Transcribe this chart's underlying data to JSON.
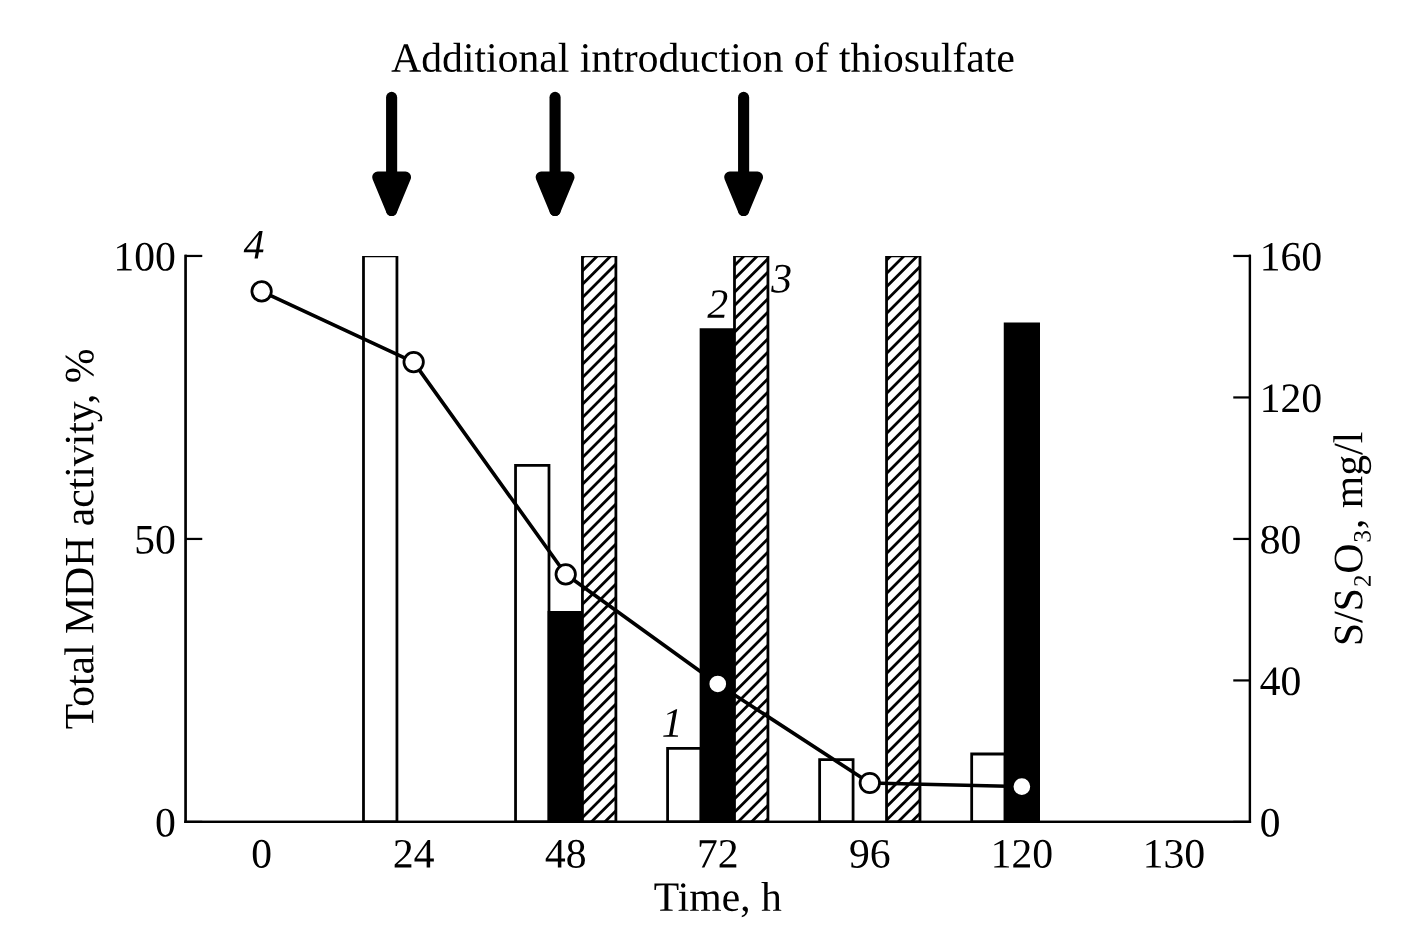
{
  "chart_data": {
    "type": "bar",
    "title": "Additional introduction of thiosulfate",
    "xlabel": "Time, h",
    "ylabel": "Total MDH activity, %",
    "y2label": "S/S₂O₃, mg/l",
    "categories": [
      "0",
      "24",
      "48",
      "72",
      "96",
      "120",
      "130"
    ],
    "ylim": [
      0,
      100
    ],
    "yticks": [
      0,
      50,
      100
    ],
    "y2lim": [
      0,
      160
    ],
    "y2ticks": [
      0,
      40,
      80,
      120,
      160
    ],
    "grid": false,
    "legend": false,
    "series": [
      {
        "name": "1",
        "type": "bar",
        "color": "#ffffff",
        "values": [
          null,
          100,
          63,
          13,
          11,
          12,
          null
        ]
      },
      {
        "name": "2",
        "type": "bar",
        "color": "#000000",
        "values": [
          null,
          null,
          37,
          87,
          null,
          88,
          null
        ]
      },
      {
        "name": "3",
        "type": "bar",
        "color": "#000000",
        "values": [
          null,
          null,
          100,
          100,
          100,
          null,
          null
        ]
      },
      {
        "name": "4",
        "type": "line",
        "axis": "y2",
        "color": "#000000",
        "marker": "circle",
        "values": [
          150,
          130,
          70,
          39,
          11,
          10,
          null
        ]
      }
    ]
  }
}
